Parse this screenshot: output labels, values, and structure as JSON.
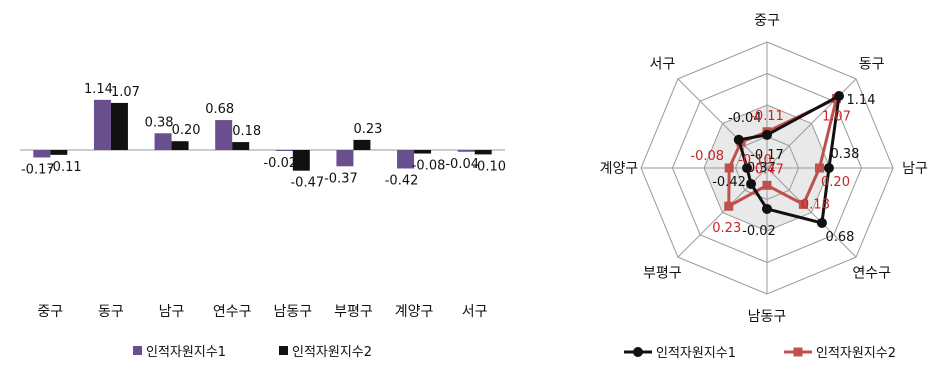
{
  "chart_data": [
    {
      "type": "bar",
      "categories": [
        "중구",
        "동구",
        "남구",
        "연수구",
        "남동구",
        "부평구",
        "계양구",
        "서구"
      ],
      "series": [
        {
          "name": "인적자원지수1",
          "values": [
            -0.17,
            1.14,
            0.38,
            0.68,
            -0.02,
            -0.37,
            -0.42,
            -0.04
          ],
          "labels": [
            "-0.17",
            "1.14",
            "0.38",
            "0.68",
            "-0.02",
            "-0.37",
            "-0.42",
            "-0.04"
          ],
          "color": "#6a4f8e"
        },
        {
          "name": "인적자원지수2",
          "values": [
            -0.11,
            1.07,
            0.2,
            0.18,
            -0.47,
            0.23,
            -0.08,
            -0.1
          ],
          "labels": [
            "-0.11",
            "1.07",
            "0.20",
            "0.18",
            "-0.47",
            "0.23",
            "-0.08",
            "-0.10"
          ],
          "color": "#111111"
        }
      ],
      "grid": false,
      "legend": "bottom"
    },
    {
      "type": "radar",
      "categories": [
        "중구",
        "동구",
        "남구",
        "연수구",
        "남동구",
        "부평구",
        "계양구",
        "서구"
      ],
      "series": [
        {
          "name": "인적자원지수1",
          "values": [
            -0.17,
            1.14,
            0.38,
            0.68,
            -0.02,
            -0.37,
            -0.42,
            -0.04
          ],
          "labels": [
            "-0.17",
            "1.14",
            "0.38",
            "0.68",
            "-0.02",
            "-0.37",
            "-0.42",
            "-0.04"
          ],
          "color": "#111111"
        },
        {
          "name": "인적자원지수2",
          "values": [
            -0.11,
            1.07,
            0.2,
            0.18,
            -0.47,
            0.23,
            -0.08,
            -0.1
          ],
          "labels": [
            "-0.11",
            "1.07",
            "0.20",
            "0.18",
            "-0.47",
            "0.23",
            "-0.08",
            "-0.10"
          ],
          "color": "#c0504d"
        }
      ],
      "rlim": [
        -0.8,
        1.6
      ],
      "rings": 4,
      "legend": "bottom"
    }
  ]
}
